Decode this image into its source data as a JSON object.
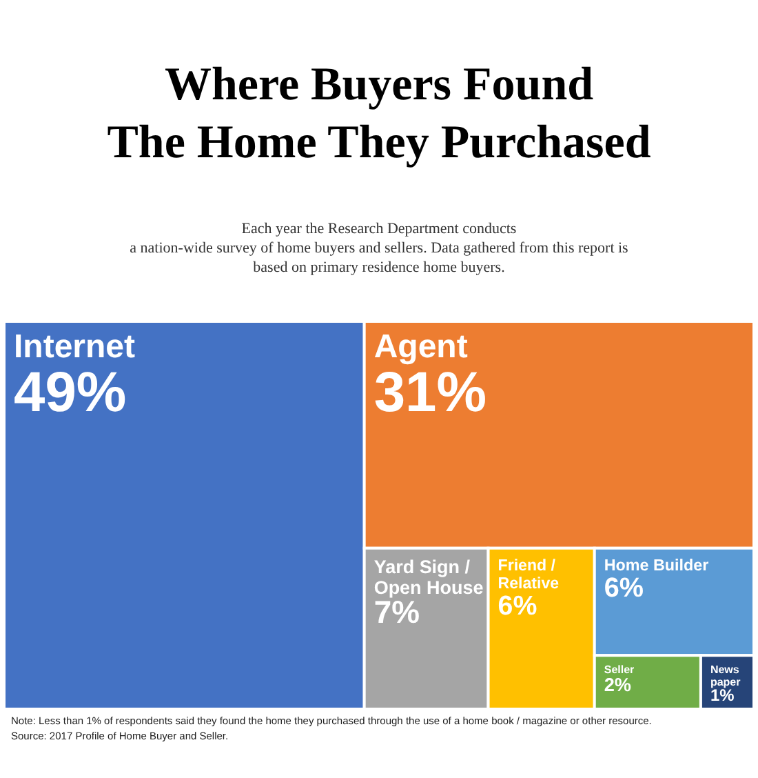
{
  "chart_data": {
    "type": "other",
    "title": "Where Buyers Found\nThe Home They Purchased",
    "subtitle": "Each year the Research Department conducts\na nation-wide survey of home buyers and sellers.  Data gathered from this report is\nbased on primary residence home buyers.",
    "categories": [
      "Internet",
      "Agent",
      "Yard Sign /\nOpen House",
      "Friend /\nRelative",
      "Home Builder",
      "Seller",
      "News\npaper"
    ],
    "values": [
      49,
      31,
      7,
      6,
      6,
      2,
      1
    ],
    "value_labels": [
      "49%",
      "31%",
      "7%",
      "6%",
      "6%",
      "2%",
      "1%"
    ],
    "colors": [
      "#4472c4",
      "#ed7d31",
      "#a5a5a5",
      "#ffc000",
      "#5b9bd5",
      "#70ad47",
      "#264478"
    ],
    "annotations": [
      "Note:  Less than 1% of respondents said they found the home they purchased through the use of a home book / magazine or other resource.",
      "Source:  2017 Profile of Home Buyer and Seller."
    ]
  }
}
